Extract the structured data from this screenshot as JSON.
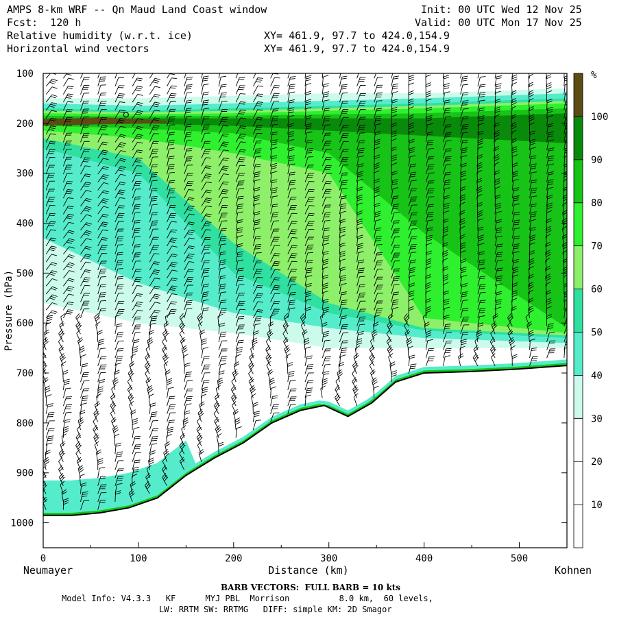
{
  "header": {
    "title": "AMPS 8-km WRF -- Qn Maud Land Coast window",
    "init": "Init: 00 UTC Wed 12 Nov 25",
    "fcst": "Fcst:  120 h",
    "valid": "Valid: 00 UTC Mon 17 Nov 25",
    "field1": "Relative humidity (w.r.t. ice)",
    "field2": "Horizontal wind vectors",
    "xy1": "XY= 461.9, 97.7 to 424.0,154.9",
    "xy2": "XY= 461.9, 97.7 to 424.0,154.9"
  },
  "colors": {
    "white": "#ffffff",
    "c30": "#ccfbec",
    "c40": "#55eccb",
    "c50": "#2fe0a1",
    "c60": "#8ef06a",
    "c70": "#2ef02e",
    "c80": "#17c317",
    "c90": "#0a8a0a",
    "c100": "#5c4c14"
  },
  "footer": {
    "barb_note": "BARB VECTORS:  FULL BARB = 10 kts",
    "model_info": "Model Info: V4.3.3   KF      MYJ PBL  Morrison          8.0 km,  60 levels,",
    "physics": "LW: RRTM SW: RRTMG   DIFF: simple KM: 2D Smagor"
  },
  "chart_data": {
    "type": "heatmap",
    "title": "Relative humidity (w.r.t. ice) cross-section with horizontal wind barbs",
    "xlabel": "Distance (km)",
    "ylabel": "Pressure (hPa)",
    "xlim": [
      0,
      550
    ],
    "ylim": [
      1050,
      100
    ],
    "x_ticks": [
      0,
      100,
      200,
      300,
      400,
      500
    ],
    "y_ticks": [
      100,
      200,
      300,
      400,
      500,
      600,
      700,
      800,
      900,
      1000
    ],
    "start_label": "Neumayer",
    "end_label": "Kohnen",
    "colorbar": {
      "unit": "%",
      "levels": [
        10,
        20,
        30,
        40,
        50,
        60,
        70,
        80,
        90,
        100
      ]
    },
    "terrain_surface": [
      {
        "x": 0,
        "p": 985
      },
      {
        "x": 30,
        "p": 985
      },
      {
        "x": 60,
        "p": 980
      },
      {
        "x": 90,
        "p": 970
      },
      {
        "x": 120,
        "p": 950
      },
      {
        "x": 150,
        "p": 905
      },
      {
        "x": 180,
        "p": 870
      },
      {
        "x": 210,
        "p": 840
      },
      {
        "x": 240,
        "p": 800
      },
      {
        "x": 270,
        "p": 775
      },
      {
        "x": 295,
        "p": 765
      },
      {
        "x": 320,
        "p": 787
      },
      {
        "x": 345,
        "p": 760
      },
      {
        "x": 370,
        "p": 718
      },
      {
        "x": 400,
        "p": 700
      },
      {
        "x": 450,
        "p": 697
      },
      {
        "x": 500,
        "p": 692
      },
      {
        "x": 550,
        "p": 685
      }
    ],
    "rh_bands": [
      {
        "name": "rh-30-band",
        "level": 30,
        "top": [
          [
            0,
            150
          ],
          [
            100,
            150
          ],
          [
            200,
            145
          ],
          [
            300,
            140
          ],
          [
            400,
            140
          ],
          [
            550,
            130
          ]
        ],
        "bottom": [
          [
            0,
            560
          ],
          [
            100,
            600
          ],
          [
            200,
            620
          ],
          [
            300,
            650
          ],
          [
            400,
            650
          ],
          [
            550,
            650
          ]
        ]
      },
      {
        "name": "rh-40-band",
        "level": 40,
        "top": [
          [
            0,
            160
          ],
          [
            100,
            165
          ],
          [
            200,
            160
          ],
          [
            300,
            155
          ],
          [
            400,
            150
          ],
          [
            550,
            140
          ]
        ],
        "bottom": [
          [
            0,
            430
          ],
          [
            100,
            520
          ],
          [
            200,
            580
          ],
          [
            300,
            610
          ],
          [
            400,
            630
          ],
          [
            550,
            640
          ]
        ]
      },
      {
        "name": "rh-50-band",
        "level": 50,
        "top": [
          [
            0,
            170
          ],
          [
            100,
            175
          ],
          [
            200,
            170
          ],
          [
            300,
            165
          ],
          [
            400,
            160
          ],
          [
            550,
            150
          ]
        ],
        "bottom": [
          [
            0,
            250
          ],
          [
            100,
            300
          ],
          [
            200,
            500
          ],
          [
            300,
            580
          ],
          [
            400,
            615
          ],
          [
            550,
            630
          ]
        ]
      },
      {
        "name": "rh-60-band",
        "level": 60,
        "top": [
          [
            0,
            175
          ],
          [
            100,
            178
          ],
          [
            200,
            175
          ],
          [
            300,
            170
          ],
          [
            400,
            165
          ],
          [
            550,
            155
          ]
        ],
        "bottom": [
          [
            0,
            230
          ],
          [
            100,
            270
          ],
          [
            200,
            440
          ],
          [
            300,
            560
          ],
          [
            400,
            610
          ],
          [
            550,
            625
          ]
        ]
      },
      {
        "name": "rh-70-band",
        "level": 70,
        "top": [
          [
            0,
            180
          ],
          [
            100,
            182
          ],
          [
            200,
            180
          ],
          [
            300,
            175
          ],
          [
            400,
            170
          ],
          [
            550,
            160
          ]
        ],
        "bottom": [
          [
            0,
            215
          ],
          [
            100,
            230
          ],
          [
            200,
            260
          ],
          [
            300,
            300
          ],
          [
            400,
            590
          ],
          [
            550,
            620
          ]
        ]
      },
      {
        "name": "rh-80-band",
        "level": 80,
        "top": [
          [
            0,
            185
          ],
          [
            100,
            186
          ],
          [
            200,
            185
          ],
          [
            300,
            182
          ],
          [
            400,
            180
          ],
          [
            550,
            170
          ]
        ],
        "bottom": [
          [
            0,
            205
          ],
          [
            100,
            210
          ],
          [
            200,
            220
          ],
          [
            300,
            260
          ],
          [
            400,
            420
          ],
          [
            550,
            610
          ]
        ]
      },
      {
        "name": "rh-90-band",
        "level": 90,
        "top": [
          [
            0,
            190
          ],
          [
            100,
            190
          ],
          [
            200,
            190
          ],
          [
            300,
            190
          ],
          [
            400,
            190
          ],
          [
            550,
            180
          ]
        ],
        "bottom": [
          [
            0,
            200
          ],
          [
            100,
            200
          ],
          [
            200,
            205
          ],
          [
            300,
            215
          ],
          [
            400,
            225
          ],
          [
            550,
            240
          ]
        ]
      },
      {
        "name": "rh-100-band",
        "level": 100,
        "top": [
          [
            0,
            192
          ],
          [
            60,
            188
          ],
          [
            130,
            195
          ]
        ],
        "bottom": [
          [
            0,
            205
          ],
          [
            60,
            202
          ],
          [
            130,
            200
          ]
        ]
      }
    ]
  }
}
